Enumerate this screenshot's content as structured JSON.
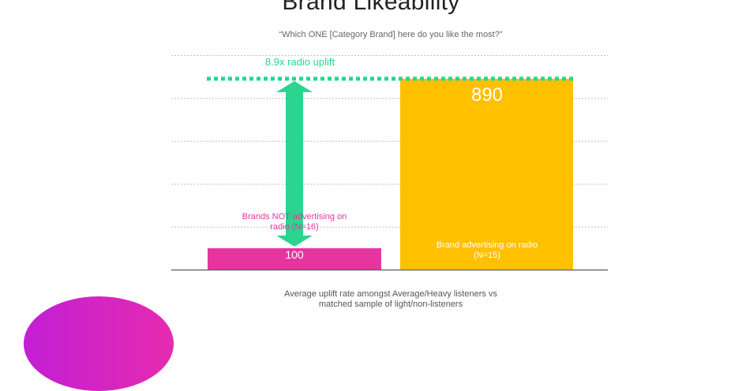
{
  "title": "Brand Likeability",
  "subtitle": "“Which ONE [Category Brand] here do you like the most?”",
  "footnote": {
    "line1": "Average  uplift rate amongst  Average/Heavy  listeners vs",
    "line2": "matched  sample  of light/non-listeners"
  },
  "colors": {
    "not_radio": "#e6359e",
    "radio": "#ffc000",
    "uplift": "#2bd48f",
    "grid": "#bfbfbf",
    "axis": "#595959",
    "value_label": "#ffffff"
  },
  "chart_data": {
    "type": "bar",
    "categories": [
      "Brands NOT advertising on radio (N=16)",
      "Brand advertising on radio (N=15)"
    ],
    "values": [
      100,
      890
    ],
    "value_labels": [
      "100",
      "890"
    ],
    "category_label_lines": [
      [
        "Brands NOT  advertising  on",
        "radio (N=16)"
      ],
      [
        "Brand advertising  on radio",
        "(N=15)"
      ]
    ],
    "ylim": [
      0,
      1000
    ],
    "grid": true,
    "annotation": {
      "text": "8.9x radio uplift",
      "from_value": 100,
      "to_value": 890
    }
  }
}
